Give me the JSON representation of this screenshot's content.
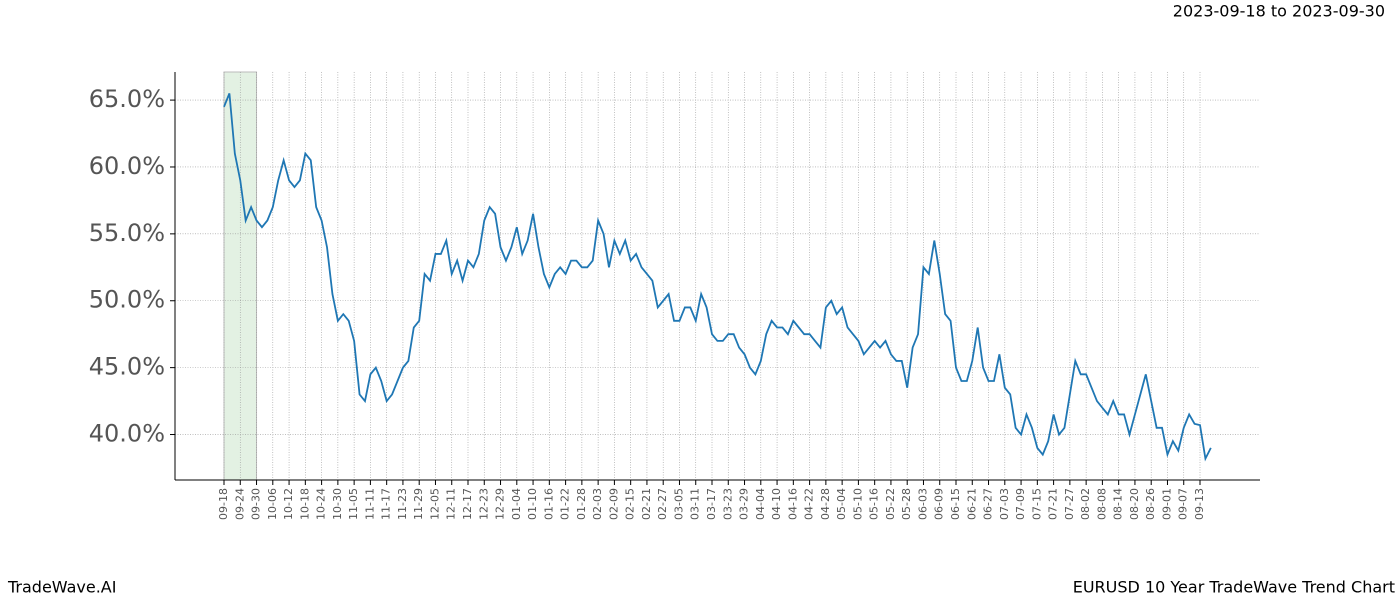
{
  "chart_data": {
    "type": "line",
    "title": "2023-09-18 to 2023-09-30",
    "footer_left": "TradeWave.AI",
    "footer_right": "EURUSD 10 Year TradeWave Trend Chart",
    "categories": [
      "09-18",
      null,
      null,
      "09-24",
      null,
      null,
      "09-30",
      null,
      null,
      "10-06",
      null,
      null,
      "10-12",
      null,
      null,
      "10-18",
      null,
      null,
      "10-24",
      null,
      null,
      "10-30",
      null,
      null,
      "11-05",
      null,
      null,
      "11-11",
      null,
      null,
      "11-17",
      null,
      null,
      "11-23",
      null,
      null,
      "11-29",
      null,
      null,
      "12-05",
      null,
      null,
      "12-11",
      null,
      null,
      "12-17",
      null,
      null,
      "12-23",
      null,
      null,
      "12-29",
      null,
      null,
      "01-04",
      null,
      null,
      "01-10",
      null,
      null,
      "01-16",
      null,
      null,
      "01-22",
      null,
      null,
      "01-28",
      null,
      null,
      "02-03",
      null,
      null,
      "02-09",
      null,
      null,
      "02-15",
      null,
      null,
      "02-21",
      null,
      null,
      "02-27",
      null,
      null,
      "03-05",
      null,
      null,
      "03-11",
      null,
      null,
      "03-17",
      null,
      null,
      "03-23",
      null,
      null,
      "03-29",
      null,
      null,
      "04-04",
      null,
      null,
      "04-10",
      null,
      null,
      "04-16",
      null,
      null,
      "04-22",
      null,
      null,
      "04-28",
      null,
      null,
      "05-04",
      null,
      null,
      "05-10",
      null,
      null,
      "05-16",
      null,
      null,
      "05-22",
      null,
      null,
      "05-28",
      null,
      null,
      "06-03",
      null,
      null,
      "06-09",
      null,
      null,
      "06-15",
      null,
      null,
      "06-21",
      null,
      null,
      "06-27",
      null,
      null,
      "07-03",
      null,
      null,
      "07-09",
      null,
      null,
      "07-15",
      null,
      null,
      "07-21",
      null,
      null,
      "07-27",
      null,
      null,
      "08-02",
      null,
      null,
      "08-08",
      null,
      null,
      "08-14",
      null,
      null,
      "08-20",
      null,
      null,
      "08-26",
      null,
      null,
      "09-01",
      null,
      null,
      "09-07",
      null,
      null,
      "09-13",
      null,
      null
    ],
    "series": [
      {
        "color": "#1f77b4",
        "values": [
          64.5,
          65.5,
          61,
          59,
          56,
          57,
          56,
          55.5,
          56,
          57,
          59,
          60.5,
          59,
          58.5,
          59,
          61,
          60.5,
          57,
          56,
          54,
          50.5,
          48.5,
          49,
          48.5,
          47,
          43,
          42.5,
          44.5,
          45,
          44,
          42.5,
          43,
          44,
          45,
          45.5,
          48,
          48.5,
          52,
          51.5,
          53.5,
          53.5,
          54.5,
          52,
          53,
          51.5,
          53,
          52.5,
          53.5,
          56,
          57,
          56.5,
          54,
          53,
          54,
          55.5,
          53.5,
          54.5,
          56.5,
          54,
          52,
          51,
          52,
          52.5,
          52,
          53,
          53,
          52.5,
          52.5,
          53,
          56,
          55,
          52.5,
          54.5,
          53.5,
          54.5,
          53,
          53.5,
          52.5,
          52,
          51.5,
          49.5,
          50,
          50.5,
          48.5,
          48.5,
          49.5,
          49.5,
          48.5,
          50.5,
          49.5,
          47.5,
          47,
          47,
          47.5,
          47.5,
          46.5,
          46,
          45,
          44.5,
          45.5,
          47.5,
          48.5,
          48,
          48,
          47.5,
          48.5,
          48,
          47.5,
          47.5,
          47,
          46.5,
          49.5,
          50,
          49,
          49.5,
          48,
          47.5,
          47,
          46,
          46.5,
          47,
          46.5,
          47,
          46,
          45.5,
          45.5,
          43.5,
          46.5,
          47.5,
          52.5,
          52,
          54.5,
          52,
          49,
          48.5,
          45,
          44,
          44,
          45.5,
          48,
          45,
          44,
          44,
          46,
          43.5,
          43,
          40.5,
          40,
          41.5,
          40.5,
          39,
          38.5,
          39.5,
          41.5,
          40,
          40.5,
          43,
          45.5,
          44.5,
          44.5,
          43.5,
          42.5,
          42,
          41.5,
          42.5,
          41.5,
          41.5,
          40,
          41.5,
          43,
          44.5,
          42.5,
          40.5,
          40.5,
          38.5,
          39.5,
          38.8,
          40.5,
          41.5,
          40.8,
          40.7,
          38.2,
          39
        ]
      }
    ],
    "ylim": [
      36.6,
      67.1
    ],
    "yticks": [
      {
        "value": 40,
        "label": "40.0%"
      },
      {
        "value": 45,
        "label": "45.0%"
      },
      {
        "value": 50,
        "label": "50.0%"
      },
      {
        "value": 55,
        "label": "55.0%"
      },
      {
        "value": 60,
        "label": "60.0%"
      },
      {
        "value": 65,
        "label": "65.0%"
      }
    ],
    "grid": true,
    "highlight_color": "#e3f1e3"
  }
}
